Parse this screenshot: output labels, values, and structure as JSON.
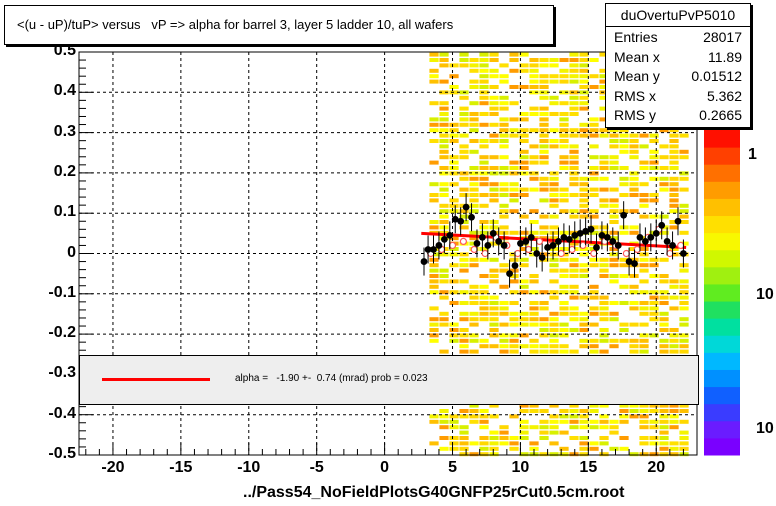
{
  "title": "<(u - uP)/tuP> versus   vP => alpha for barrel 3, layer 5 ladder 10, all wafers",
  "stats": {
    "name": "duOvertuPvP5010",
    "rows": [
      {
        "key": "Entries",
        "value": "28017"
      },
      {
        "key": "Mean x",
        "value": "11.89"
      },
      {
        "key": "Mean y",
        "value": "0.01512"
      },
      {
        "key": "RMS x",
        "value": "5.362"
      },
      {
        "key": "RMS y",
        "value": "0.2665"
      }
    ]
  },
  "fit_text": "alpha =   -1.90 +-  0.74 (mrad) prob = 0.023",
  "footer": "../Pass54_NoFieldPlotsG40GNFP25rCut0.5cm.root",
  "z_labels": [
    "1",
    "10",
    "10"
  ],
  "colors": {
    "fit": "#ff0000",
    "points": "#000000",
    "open_points": "#ff5a5a"
  },
  "chart_data": {
    "type": "scatter",
    "title": "<(u - uP)/tuP> versus   vP => alpha for barrel 3, layer 5 ladder 10, all wafers",
    "xlim": [
      -22.5,
      23
    ],
    "ylim": [
      -0.5,
      0.5
    ],
    "x_ticks": [
      "-20",
      "-15",
      "-10",
      "-5",
      "0",
      "5",
      "10",
      "15",
      "20"
    ],
    "y_ticks": [
      "0.5",
      "0.4",
      "0.3",
      "0.2",
      "0.1",
      "0",
      "-0.1",
      "-0.2",
      "-0.3",
      "-0.4",
      "-0.5"
    ],
    "grid": true,
    "heatmap_x_range": [
      3.3,
      21.8
    ],
    "fit": {
      "x": [
        2.7,
        22.2
      ],
      "y": [
        0.05,
        0.015
      ]
    },
    "series": [
      {
        "x": [
          2.9,
          3.2,
          3.6,
          4.0,
          4.4,
          4.8,
          5.2,
          5.6,
          6.0,
          6.4,
          6.8,
          7.2,
          7.6,
          8.0,
          8.4,
          8.8,
          9.2,
          9.6,
          10.0,
          10.4,
          10.8,
          11.2,
          11.6,
          12.0,
          12.4,
          12.8,
          13.2,
          13.6,
          14.0,
          14.4,
          14.8,
          15.2,
          15.6,
          16.0,
          16.4,
          16.8,
          17.2,
          17.6,
          18.0,
          18.4,
          18.8,
          19.2,
          19.6,
          20.0,
          20.4,
          20.8,
          21.2,
          21.6,
          22.0
        ],
        "y": [
          -0.02,
          0.01,
          0.01,
          0.02,
          0.035,
          0.045,
          0.085,
          0.08,
          0.115,
          0.09,
          0.025,
          0.04,
          0.02,
          0.05,
          0.03,
          0.02,
          -0.05,
          -0.03,
          0.025,
          0.03,
          0.04,
          0.0,
          -0.01,
          0.015,
          0.02,
          0.03,
          0.04,
          0.035,
          0.045,
          0.05,
          0.055,
          0.06,
          0.015,
          0.045,
          0.04,
          0.03,
          0.02,
          0.095,
          -0.02,
          -0.025,
          0.04,
          0.03,
          0.04,
          0.05,
          0.07,
          0.03,
          0.02,
          0.08,
          0.0
        ]
      },
      {
        "x": [
          3.4,
          4.2,
          5.0,
          5.8,
          6.6,
          7.4,
          8.2,
          9.0,
          9.8,
          10.6,
          11.4,
          12.2,
          13.0,
          13.8,
          14.6,
          15.4,
          16.2,
          17.0,
          17.8,
          18.6,
          19.4,
          20.2,
          21.0,
          21.8
        ],
        "y": [
          0.0,
          0.01,
          0.02,
          0.03,
          0.01,
          0.0,
          0.04,
          0.02,
          0.0,
          0.01,
          0.03,
          0.02,
          0.0,
          0.01,
          0.02,
          0.0,
          0.03,
          0.02,
          0.0,
          0.01,
          0.04,
          0.06,
          0.0,
          0.02
        ]
      }
    ]
  }
}
